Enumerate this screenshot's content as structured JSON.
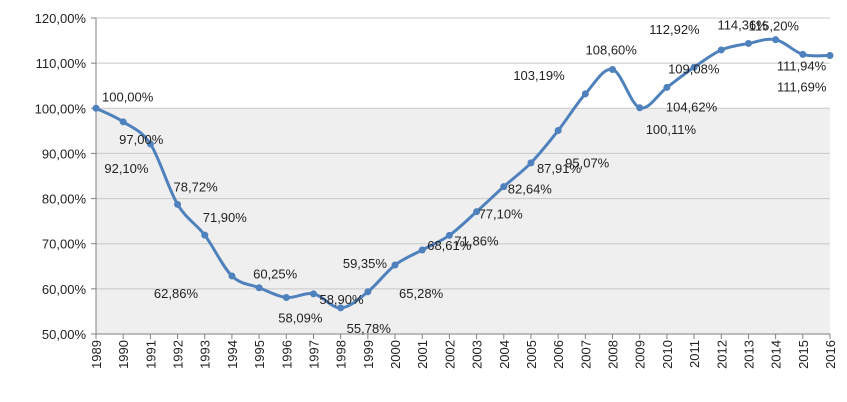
{
  "chart_data": {
    "type": "line",
    "title": "",
    "xlabel": "",
    "ylabel": "",
    "x": [
      "1989",
      "1990",
      "1991",
      "1992",
      "1993",
      "1994",
      "1995",
      "1996",
      "1997",
      "1998",
      "1999",
      "2000",
      "2001",
      "2002",
      "2003",
      "2004",
      "2005",
      "2006",
      "2007",
      "2008",
      "2009",
      "2010",
      "2011",
      "2012",
      "2013",
      "2014",
      "2015",
      "2016"
    ],
    "series": [
      {
        "values": [
          100.0,
          97.0,
          92.1,
          78.72,
          71.9,
          62.86,
          60.25,
          58.09,
          58.9,
          55.78,
          59.35,
          65.28,
          68.61,
          71.86,
          77.1,
          82.64,
          87.91,
          95.07,
          103.19,
          108.6,
          100.11,
          104.62,
          109.08,
          112.92,
          114.36,
          115.2,
          111.94,
          111.69
        ],
        "labels": [
          "100,00%",
          "97,00%",
          "92,10%",
          "78,72%",
          "71,90%",
          "62,86%",
          "60,25%",
          "58,09%",
          "58,90%",
          "55,78%",
          "59,35%",
          "65,28%",
          "68,61%",
          "71,86%",
          "77,10%",
          "82,64%",
          "87,91%",
          "95,07%",
          "103,19%",
          "108,60%",
          "100,11%",
          "104,62%",
          "109,08%",
          "112,92%",
          "114,36%",
          "115,20%",
          "111,94%",
          "111,69%"
        ],
        "color": "#4f81bd"
      }
    ],
    "yticks": [
      "50,00%",
      "60,00%",
      "70,00%",
      "80,00%",
      "90,00%",
      "100,00%",
      "110,00%",
      "120,00%"
    ],
    "ylim": [
      50,
      120
    ],
    "grid": true,
    "legend": "none",
    "shaded_band": [
      50,
      100
    ],
    "shaded_color": "#efefef"
  }
}
